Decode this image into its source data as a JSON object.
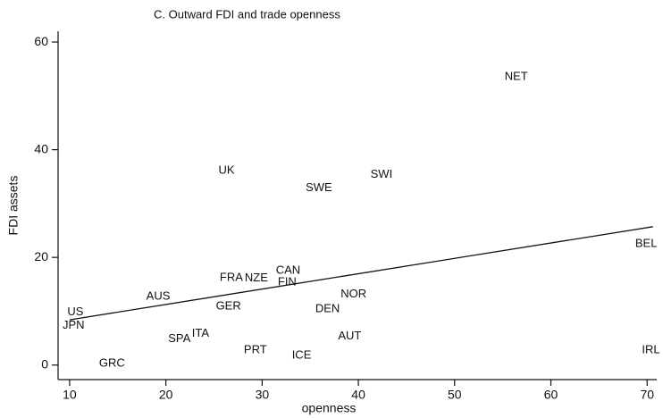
{
  "chart_data": {
    "type": "scatter",
    "title": "C. Outward FDI and trade openness",
    "x_label": "openness",
    "y_label": "FDI assets",
    "xlim": [
      8.8,
      71
    ],
    "xticks": [
      10,
      20,
      30,
      40,
      50,
      60,
      70
    ],
    "ylim": [
      -2.7,
      62
    ],
    "yticks": [
      0,
      20,
      40,
      60
    ],
    "series": [
      {
        "labels": [
          "US",
          "JPN",
          "GRC",
          "SPA",
          "ITA",
          "AUS",
          "FRA",
          "GER",
          "UK",
          "NZE",
          "PRT",
          "CAN",
          "FIN",
          "SWE",
          "SWI",
          "ICE",
          "DEN",
          "NOR",
          "AUT",
          "NET",
          "BEL",
          "IRL"
        ],
        "x": [
          10.6,
          10.4,
          14.4,
          21.4,
          23.6,
          19.2,
          26.8,
          26.5,
          26.3,
          29.4,
          29.3,
          32.7,
          32.6,
          35.9,
          42.4,
          34.1,
          36.8,
          39.5,
          39.1,
          56.4,
          69.9,
          70.4
        ],
        "values": [
          9.8,
          7.3,
          0.3,
          4.8,
          5.8,
          12.7,
          16.2,
          10.9,
          36.1,
          16.1,
          2.8,
          17.5,
          15.4,
          32.9,
          35.4,
          1.8,
          10.4,
          13.1,
          5.3,
          53.5,
          22.5,
          2.8
        ]
      }
    ],
    "fit_line": {
      "x": [
        10,
        70.6
      ],
      "values": [
        8.4,
        25.7
      ],
      "color": "#111111"
    }
  }
}
